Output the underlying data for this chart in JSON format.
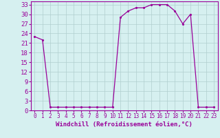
{
  "x": [
    0,
    1,
    2,
    3,
    4,
    5,
    6,
    7,
    8,
    9,
    10,
    11,
    12,
    13,
    14,
    15,
    16,
    17,
    18,
    19,
    20,
    21,
    22,
    23
  ],
  "y": [
    23,
    22,
    1,
    1,
    1,
    1,
    1,
    1,
    1,
    1,
    1,
    29,
    31,
    32,
    32,
    33,
    33,
    33,
    31,
    27,
    30,
    1,
    1,
    1
  ],
  "line_color": "#990099",
  "marker_color": "#990099",
  "bg_color": "#d6f0f0",
  "grid_color": "#b0cece",
  "xlabel": "Windchill (Refroidissement éolien,°C)",
  "xlabel_color": "#990099",
  "tick_color": "#990099",
  "ylim": [
    0,
    34
  ],
  "xlim": [
    -0.5,
    23.5
  ],
  "yticks": [
    0,
    3,
    6,
    9,
    12,
    15,
    18,
    21,
    24,
    27,
    30,
    33
  ],
  "xticks": [
    0,
    1,
    2,
    3,
    4,
    5,
    6,
    7,
    8,
    9,
    10,
    11,
    12,
    13,
    14,
    15,
    16,
    17,
    18,
    19,
    20,
    21,
    22,
    23
  ],
  "xtick_labels": [
    "0",
    "1",
    "2",
    "3",
    "4",
    "5",
    "6",
    "7",
    "8",
    "9",
    "10",
    "11",
    "12",
    "13",
    "14",
    "15",
    "16",
    "17",
    "18",
    "19",
    "20",
    "21",
    "22",
    "23"
  ],
  "ytick_labels": [
    "0",
    "3",
    "6",
    "9",
    "12",
    "15",
    "18",
    "21",
    "24",
    "27",
    "30",
    "33"
  ],
  "xlabel_fontsize": 6.5,
  "ytick_fontsize": 6.5,
  "xtick_fontsize": 5.5
}
